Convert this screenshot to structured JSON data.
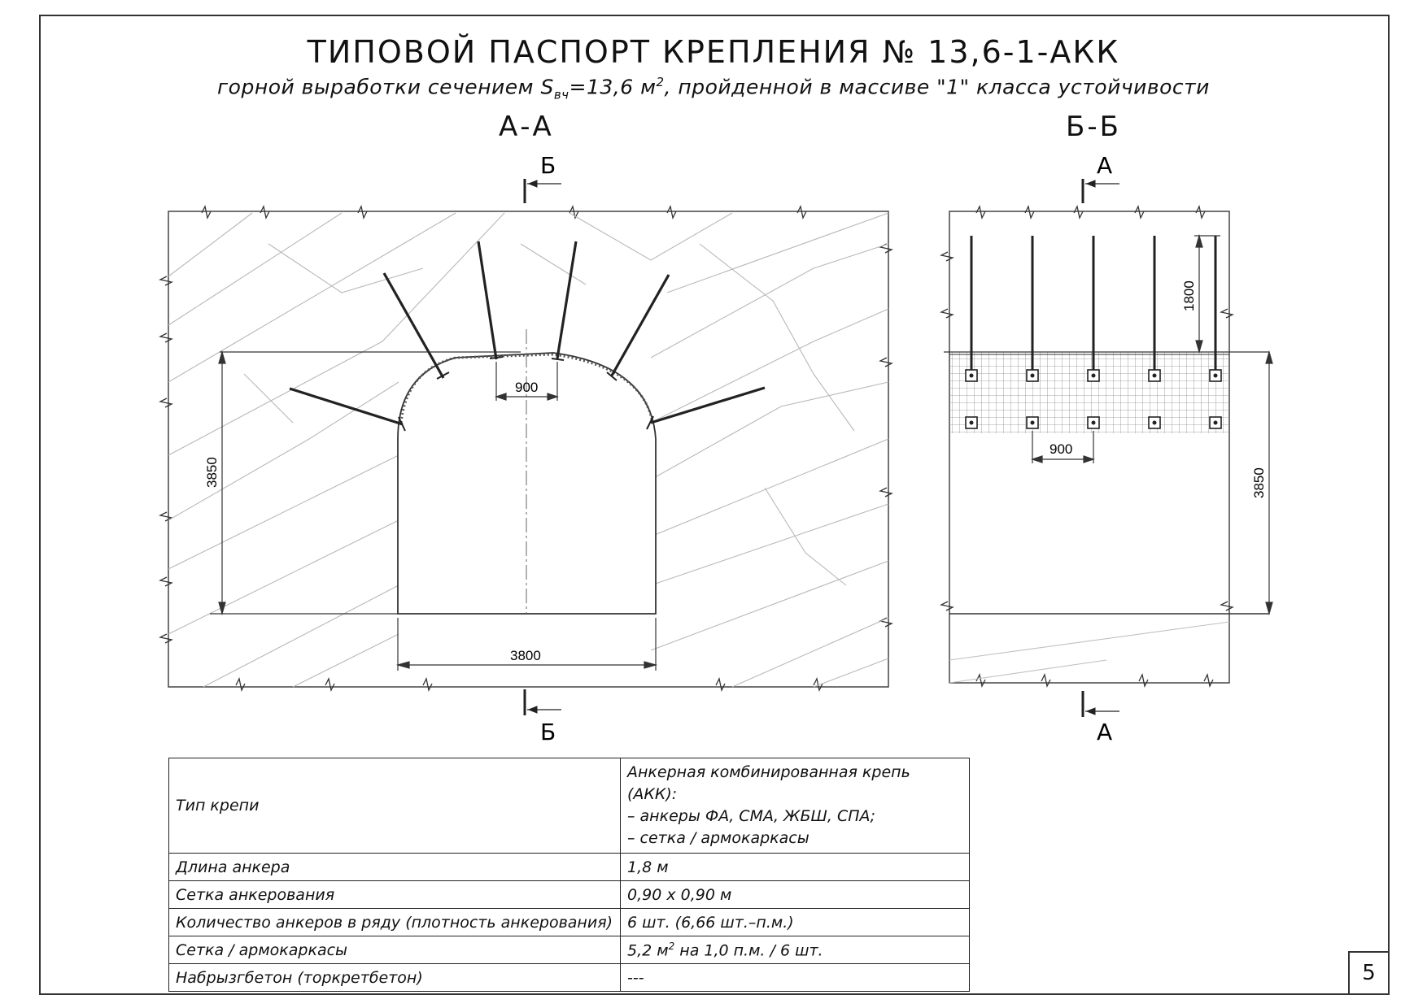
{
  "title": "ТИПОВОЙ ПАСПОРТ КРЕПЛЕНИЯ № 13,6-1-АКК",
  "subtitle": {
    "prefix": "горной выработки сечением S",
    "sub": "вч",
    "mid": "=13,6 м",
    "sup": "2",
    "suffix": ", пройденной в массиве \"1\" класса устойчивости"
  },
  "sections": {
    "aa": {
      "label": "А-А",
      "cut_top": "Б",
      "cut_bottom": "Б",
      "dim_height": "3850",
      "dim_width": "3800",
      "dim_spacing": "900"
    },
    "bb": {
      "label": "Б-Б",
      "cut_top": "А",
      "cut_bottom": "А",
      "dim_anchor_length": "1800",
      "dim_height": "3850",
      "dim_spacing": "900"
    }
  },
  "spec_table": {
    "rows": [
      {
        "param": "Тип крепи",
        "value_lines": [
          "Анкерная комбинированная крепь (АКК):",
          " – анкеры ФА, СМА, ЖБШ, СПА;",
          " – сетка / армокаркасы"
        ]
      },
      {
        "param": "Длина анкера",
        "value": "1,8 м"
      },
      {
        "param": "Сетка анкерования",
        "value": "0,90 х 0,90 м"
      },
      {
        "param": "Количество анкеров в ряду (плотность анкерования)",
        "value": "6 шт. (6,66 шт.–п.м.)"
      },
      {
        "param": "Сетка / армокаркасы",
        "value_pre": "5,2 м",
        "value_sup": "2",
        "value_post": " на 1,0 п.м. / 6 шт."
      },
      {
        "param": "Набрызгбетон (торкретбетон)",
        "value": "---"
      }
    ]
  },
  "page_number": "5"
}
